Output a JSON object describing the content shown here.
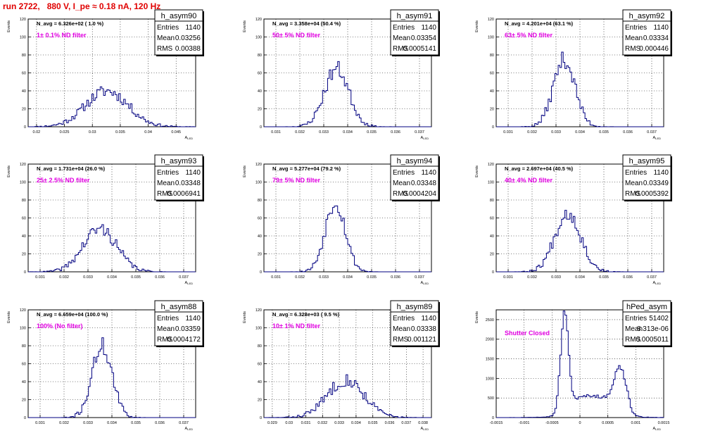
{
  "header": {
    "title": "run 2722,   880 V, I_pe ≈ 0.18 nA, 120 Hz"
  },
  "colors": {
    "histogram": "#000080",
    "filter_label": "#e000e0",
    "title": "#e00000"
  },
  "axis": {
    "ylabel": "Events",
    "xlabel": "A",
    "xlabel_sub": "LED"
  },
  "stats_labels": {
    "entries": "Entries",
    "mean": "Mean",
    "rms": "RMS"
  },
  "chart_data": [
    {
      "type": "bar",
      "name": "h_asym90",
      "navg": "N_avg = 6.326e+02 ( 1.0 %)",
      "filter": "1± 0.1% ND filter",
      "entries": "1140",
      "mean": "0.03256",
      "rms": "0.00388",
      "xlim": [
        0.0185,
        0.0485
      ],
      "ylim": [
        0,
        120
      ],
      "xticks": [
        0.02,
        0.025,
        0.03,
        0.035,
        0.04,
        0.045
      ],
      "xticklabels": [
        "0.02",
        "0.025",
        "0.03",
        "0.035",
        "0.04",
        "0.045"
      ],
      "yticks": [
        0,
        20,
        40,
        60,
        80,
        100,
        120
      ],
      "yticklabels": [
        "0",
        "20",
        "40",
        "60",
        "80",
        "100",
        "120"
      ],
      "shape": {
        "kind": "gauss",
        "mu": 0.0326,
        "sigma": 0.0038,
        "peak": 40,
        "bins": 100,
        "seed": 11
      }
    },
    {
      "type": "bar",
      "name": "h_asym91",
      "navg": "N_avg = 3.358e+04 (50.4 %)",
      "filter": "50± 5% ND filter",
      "entries": "1140",
      "mean": "0.03354",
      "rms": "0.0005141",
      "xlim": [
        0.0305,
        0.0375
      ],
      "ylim": [
        0,
        120
      ],
      "xticks": [
        0.031,
        0.032,
        0.033,
        0.034,
        0.035,
        0.036,
        0.037
      ],
      "xticklabels": [
        "0.031",
        "0.032",
        "0.033",
        "0.034",
        "0.035",
        "0.036",
        "0.037"
      ],
      "yticks": [
        0,
        20,
        40,
        60,
        80,
        100,
        120
      ],
      "yticklabels": [
        "0",
        "20",
        "40",
        "60",
        "80",
        "100",
        "120"
      ],
      "shape": {
        "kind": "gauss",
        "mu": 0.03354,
        "sigma": 0.00051,
        "peak": 65,
        "bins": 100,
        "seed": 23
      }
    },
    {
      "type": "bar",
      "name": "h_asym92",
      "navg": "N_avg = 4.201e+04 (63.1 %)",
      "filter": "63± 5% ND filter",
      "entries": "1140",
      "mean": "0.03334",
      "rms": "0.000446",
      "xlim": [
        0.0305,
        0.0375
      ],
      "ylim": [
        0,
        120
      ],
      "xticks": [
        0.031,
        0.032,
        0.033,
        0.034,
        0.035,
        0.036,
        0.037
      ],
      "xticklabels": [
        "0.031",
        "0.032",
        "0.033",
        "0.034",
        "0.035",
        "0.036",
        "0.037"
      ],
      "yticks": [
        0,
        20,
        40,
        60,
        80,
        100,
        120
      ],
      "yticklabels": [
        "0",
        "20",
        "40",
        "60",
        "80",
        "100",
        "120"
      ],
      "shape": {
        "kind": "gauss",
        "mu": 0.03334,
        "sigma": 0.00045,
        "peak": 75,
        "bins": 100,
        "seed": 37
      }
    },
    {
      "type": "bar",
      "name": "h_asym93",
      "navg": "N_avg = 1.731e+04 (26.0 %)",
      "filter": "25± 2.5% ND filter",
      "entries": "1140",
      "mean": "0.03348",
      "rms": "0.0006941",
      "xlim": [
        0.0305,
        0.0375
      ],
      "ylim": [
        0,
        120
      ],
      "xticks": [
        0.031,
        0.032,
        0.033,
        0.034,
        0.035,
        0.036,
        0.037
      ],
      "xticklabels": [
        "0.031",
        "0.032",
        "0.033",
        "0.034",
        "0.035",
        "0.036",
        "0.037"
      ],
      "yticks": [
        0,
        20,
        40,
        60,
        80,
        100,
        120
      ],
      "yticklabels": [
        "0",
        "20",
        "40",
        "60",
        "80",
        "100",
        "120"
      ],
      "shape": {
        "kind": "gauss",
        "mu": 0.0335,
        "sigma": 0.0007,
        "peak": 48,
        "bins": 100,
        "seed": 41
      }
    },
    {
      "type": "bar",
      "name": "h_asym94",
      "navg": "N_avg = 5.277e+04 (79.2 %)",
      "filter": "79± 5% ND filter",
      "entries": "1140",
      "mean": "0.03348",
      "rms": "0.0004204",
      "xlim": [
        0.0305,
        0.0375
      ],
      "ylim": [
        0,
        120
      ],
      "xticks": [
        0.031,
        0.032,
        0.033,
        0.034,
        0.035,
        0.036,
        0.037
      ],
      "xticklabels": [
        "0.031",
        "0.032",
        "0.033",
        "0.034",
        "0.035",
        "0.036",
        "0.037"
      ],
      "yticks": [
        0,
        20,
        40,
        60,
        80,
        100,
        120
      ],
      "yticklabels": [
        "0",
        "20",
        "40",
        "60",
        "80",
        "100",
        "120"
      ],
      "shape": {
        "kind": "gauss",
        "mu": 0.03348,
        "sigma": 0.00042,
        "peak": 78,
        "bins": 100,
        "seed": 53
      }
    },
    {
      "type": "bar",
      "name": "h_asym95",
      "navg": "N_avg = 2.697e+04 (40.5 %)",
      "filter": "40± 4% ND filter",
      "entries": "1140",
      "mean": "0.03349",
      "rms": "0.0005392",
      "xlim": [
        0.0305,
        0.0375
      ],
      "ylim": [
        0,
        120
      ],
      "xticks": [
        0.031,
        0.032,
        0.033,
        0.034,
        0.035,
        0.036,
        0.037
      ],
      "xticklabels": [
        "0.031",
        "0.032",
        "0.033",
        "0.034",
        "0.035",
        "0.036",
        "0.037"
      ],
      "yticks": [
        0,
        20,
        40,
        60,
        80,
        100,
        120
      ],
      "yticklabels": [
        "0",
        "20",
        "40",
        "60",
        "80",
        "100",
        "120"
      ],
      "shape": {
        "kind": "gauss",
        "mu": 0.03349,
        "sigma": 0.00054,
        "peak": 66,
        "bins": 100,
        "seed": 67
      }
    },
    {
      "type": "bar",
      "name": "h_asym88",
      "navg": "N_avg = 6.659e+04 (100.0 %)",
      "filter": "100% (No filter)",
      "entries": "1140",
      "mean": "0.03359",
      "rms": "0.0004172",
      "xlim": [
        0.0305,
        0.0375
      ],
      "ylim": [
        0,
        120
      ],
      "xticks": [
        0.031,
        0.032,
        0.033,
        0.034,
        0.035,
        0.036,
        0.037
      ],
      "xticklabels": [
        "0.031",
        "0.032",
        "0.033",
        "0.034",
        "0.035",
        "0.036",
        "0.037"
      ],
      "yticks": [
        0,
        20,
        40,
        60,
        80,
        100,
        120
      ],
      "yticklabels": [
        "0",
        "20",
        "40",
        "60",
        "80",
        "100",
        "120"
      ],
      "shape": {
        "kind": "gauss",
        "mu": 0.03359,
        "sigma": 0.00042,
        "peak": 80,
        "bins": 100,
        "seed": 71
      }
    },
    {
      "type": "bar",
      "name": "h_asym89",
      "navg": "N_avg = 6.328e+03 ( 9.5 %)",
      "filter": "10± 1% ND filter",
      "entries": "1140",
      "mean": "0.03338",
      "rms": "0.001121",
      "xlim": [
        0.0285,
        0.0385
      ],
      "ylim": [
        0,
        120
      ],
      "xticks": [
        0.029,
        0.03,
        0.031,
        0.032,
        0.033,
        0.034,
        0.035,
        0.036,
        0.037,
        0.038
      ],
      "xticklabels": [
        "0.029",
        "0.03",
        "0.031",
        "0.032",
        "0.033",
        "0.034",
        "0.035",
        "0.036",
        "0.037",
        "0.038"
      ],
      "yticks": [
        0,
        20,
        40,
        60,
        80,
        100,
        120
      ],
      "yticklabels": [
        "0",
        "20",
        "40",
        "60",
        "80",
        "100",
        "120"
      ],
      "shape": {
        "kind": "gauss",
        "mu": 0.03338,
        "sigma": 0.0011,
        "peak": 42,
        "bins": 100,
        "seed": 83
      }
    },
    {
      "type": "bar",
      "name": "hPed_asym",
      "navg": "",
      "filter": "Shutter Closed",
      "entries": "51402",
      "mean": "8.313e-06",
      "rms": "0.0005011",
      "xlim": [
        -0.0015,
        0.0015
      ],
      "ylim": [
        0,
        2750
      ],
      "xticks": [
        -0.0015,
        -0.001,
        -0.0005,
        0,
        0.0005,
        0.001,
        0.0015
      ],
      "xticklabels": [
        "-0.0015",
        "-0.001",
        "-0.0005",
        "0",
        "0.0005",
        "0.001",
        "0.0015"
      ],
      "yticks": [
        0,
        500,
        1000,
        1500,
        2000,
        2500
      ],
      "yticklabels": [
        "0",
        "500",
        "1000",
        "1500",
        "2000",
        "2500"
      ],
      "shape": {
        "kind": "ped",
        "bins": 100,
        "seed": 97
      }
    }
  ]
}
